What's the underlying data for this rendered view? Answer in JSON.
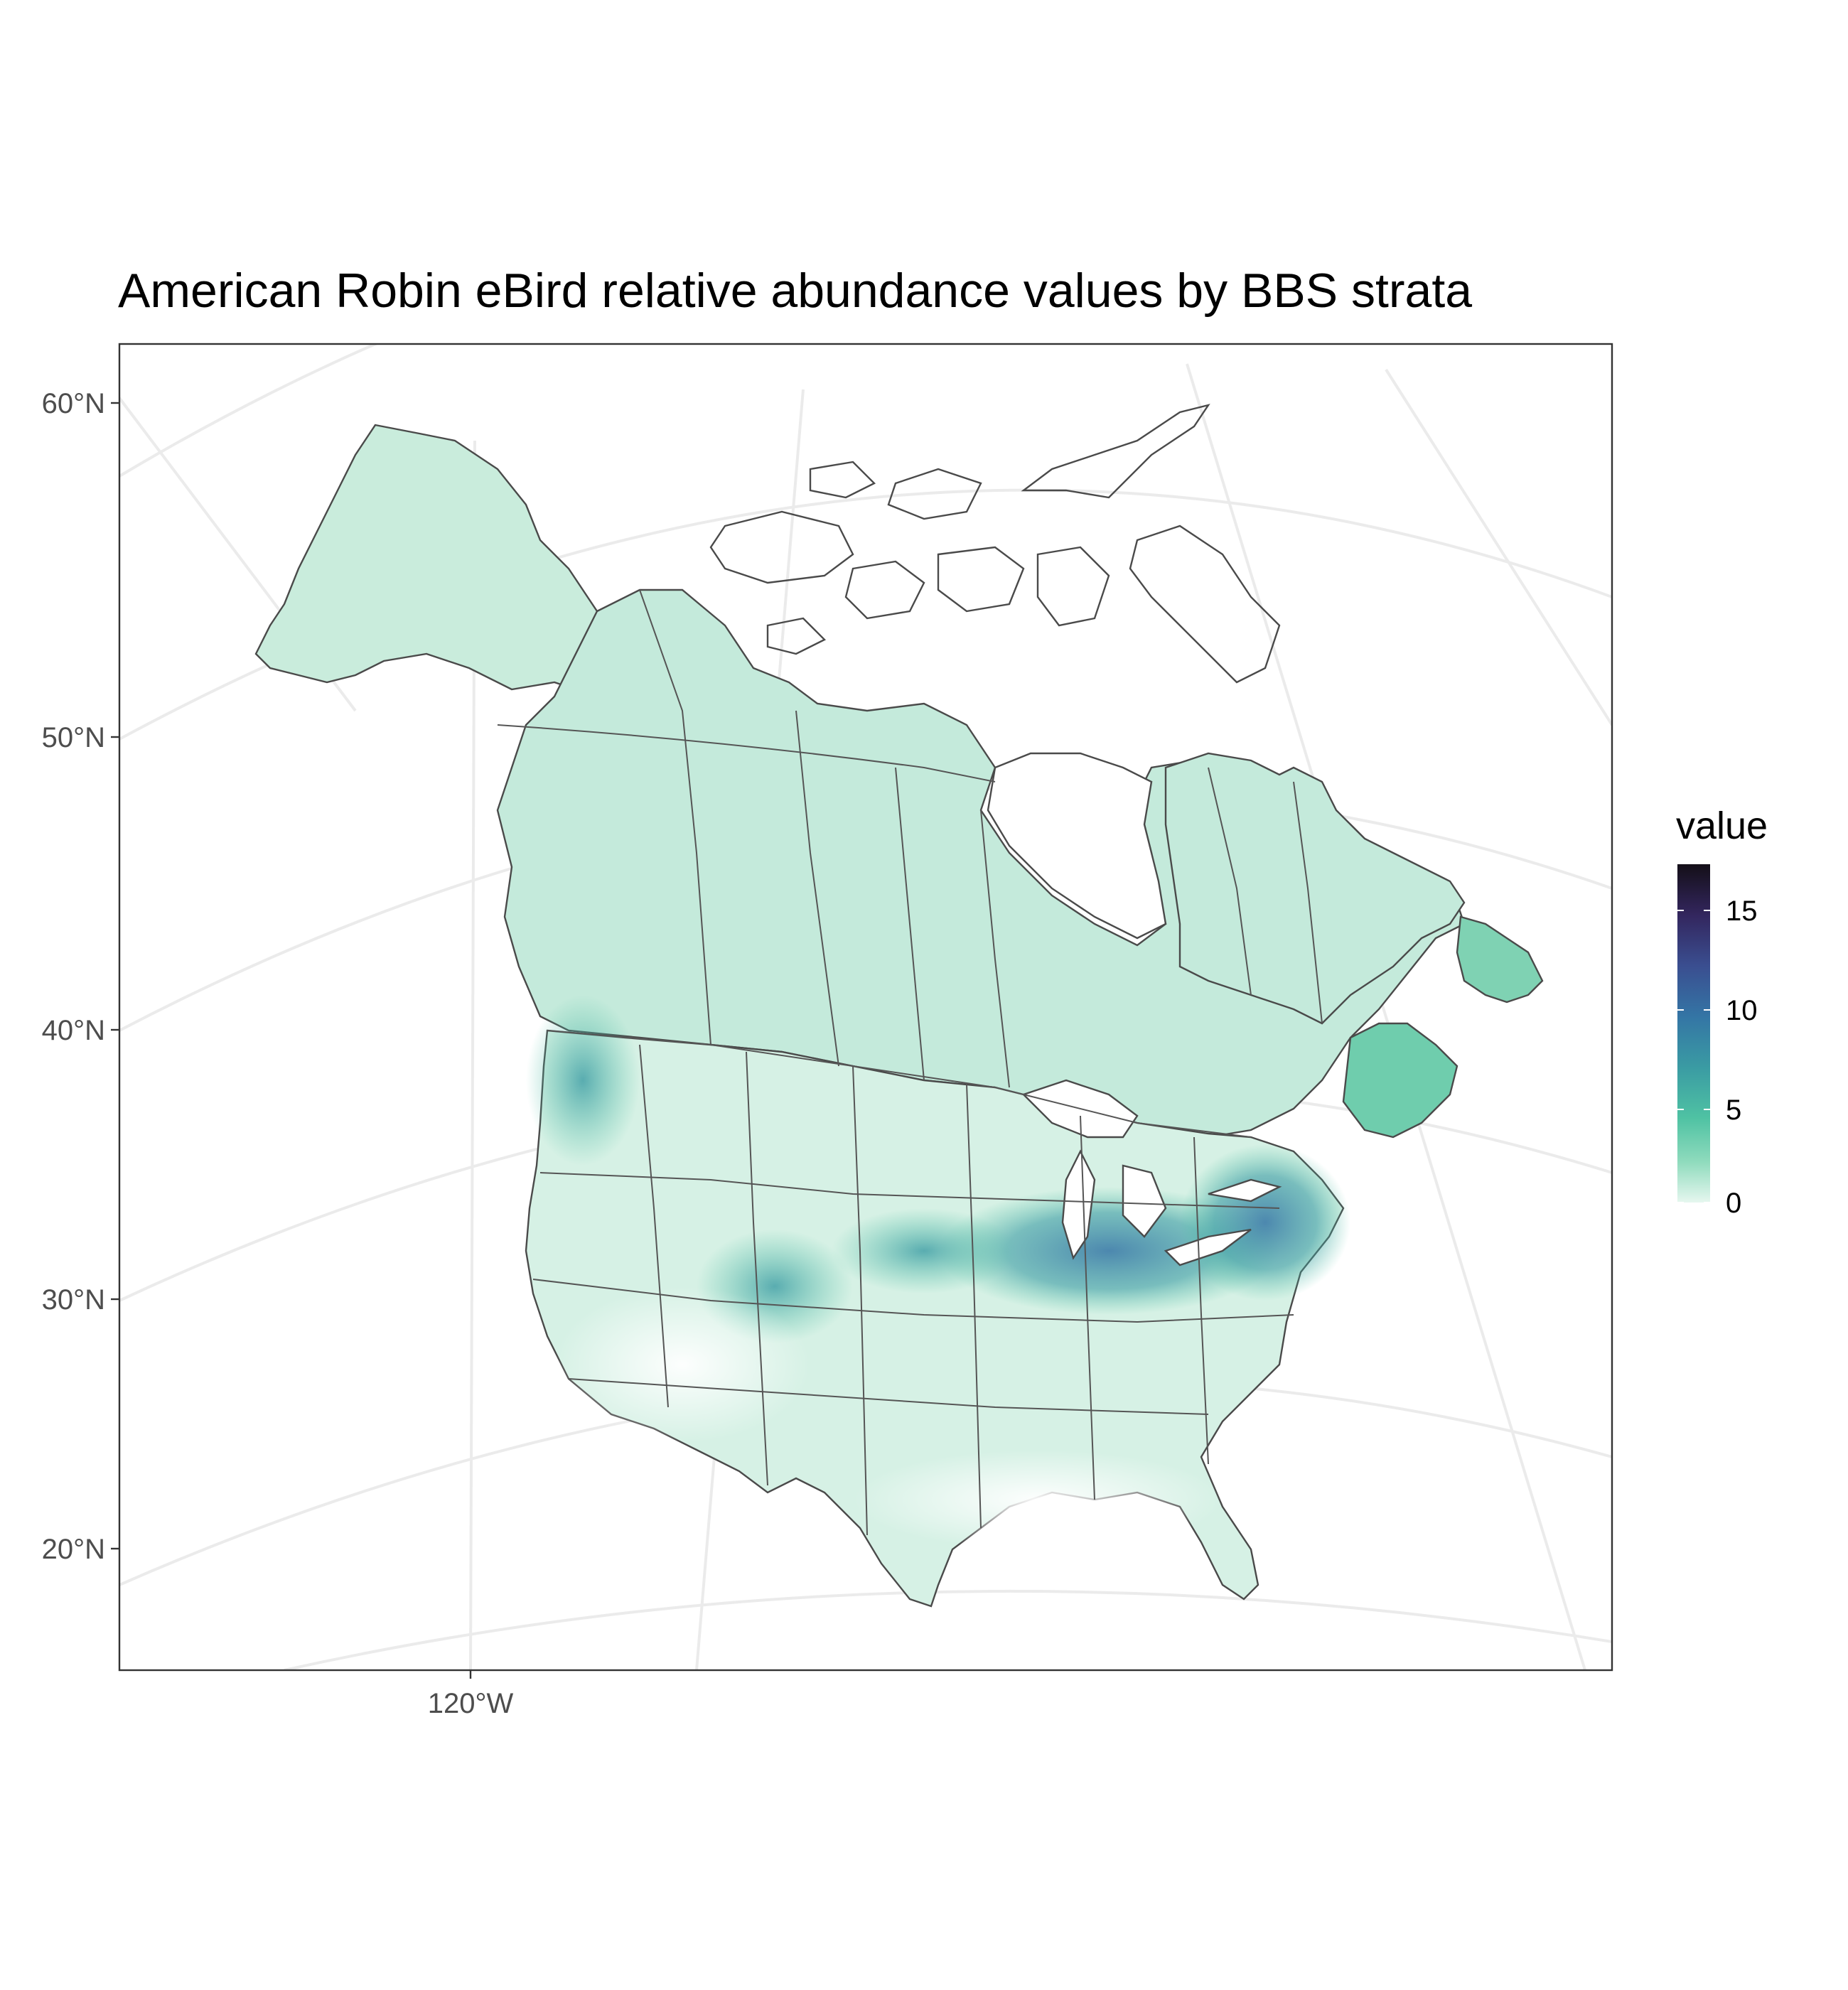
{
  "title": "American Robin eBird relative abundance values by BBS strata",
  "axes": {
    "lat_labels": [
      "60°N",
      "50°N",
      "40°N",
      "30°N",
      "20°N"
    ],
    "lon_labels": [
      "120°W"
    ]
  },
  "legend": {
    "title": "value",
    "ticks": [
      "15",
      "10",
      "5",
      "0"
    ],
    "range": [
      0,
      17
    ],
    "colors": [
      "#e6f7ef",
      "#8fdbbd",
      "#4fc2a3",
      "#3a9ba3",
      "#3475a5",
      "#3a4e90",
      "#33265e",
      "#140f18"
    ]
  },
  "chart_data": {
    "type": "heatmap",
    "title": "American Robin eBird relative abundance values by BBS strata",
    "legend_title": "value",
    "value_range": [
      0,
      17
    ],
    "legend_ticks": [
      0,
      5,
      10,
      15
    ],
    "legend_position": "right",
    "lat_ticks": [
      60,
      50,
      40,
      30,
      20
    ],
    "lon_ticks": [
      -120
    ],
    "grid": true,
    "colors": {
      "low": "#e6f7ef",
      "mid": "#4fc2a3",
      "high": "#140f18",
      "coast": "#4a4a4a",
      "grid": "#ebebeb"
    }
  }
}
